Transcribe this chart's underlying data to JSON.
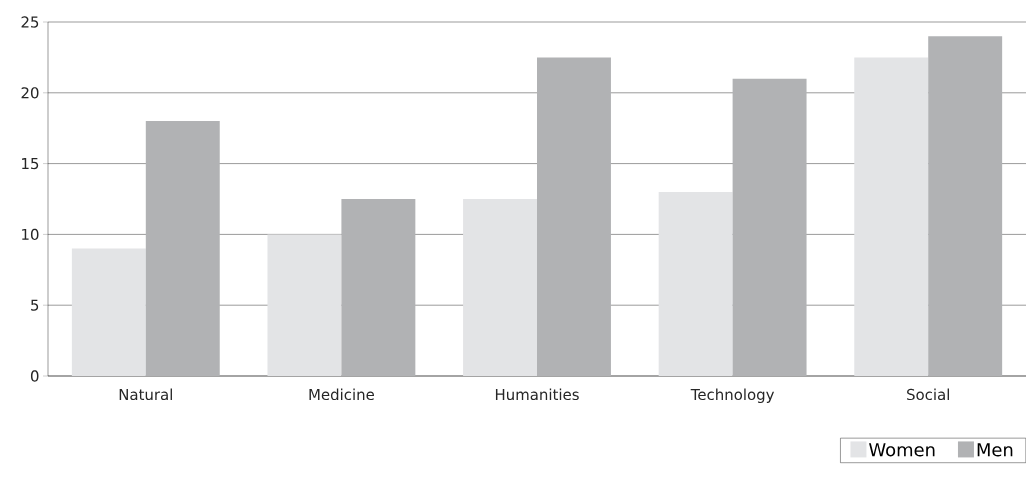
{
  "chart_data": {
    "type": "bar",
    "categories": [
      "Natural",
      "Medicine",
      "Humanities",
      "Technology",
      "Social"
    ],
    "series": [
      {
        "name": "Women",
        "color": "#e3e4e6",
        "values": [
          9,
          10,
          12.5,
          13,
          22.5
        ]
      },
      {
        "name": "Men",
        "color": "#b1b2b4",
        "values": [
          18,
          12.5,
          22.5,
          21,
          24
        ]
      }
    ],
    "ylim": [
      0,
      25
    ],
    "yticks": [
      0,
      5,
      10,
      15,
      20,
      25
    ],
    "grid": "y",
    "legend": "bottom right"
  }
}
